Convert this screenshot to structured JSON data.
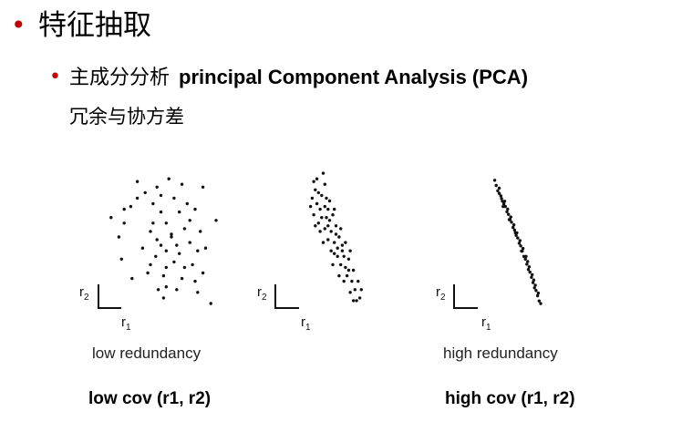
{
  "title": {
    "bullet": "•",
    "text": "特征抽取"
  },
  "subtitle": {
    "bullet": "•",
    "cn": "主成分分析",
    "en": "principal Component Analysis (PCA)"
  },
  "note": "冗余与协方差",
  "panels": [
    {
      "name": "low",
      "axis_y": "r",
      "axis_y_sub": "2",
      "axis_x": "r",
      "axis_x_sub": "1",
      "caption": "low redundancy",
      "bold_caption": "low cov (r1, r2)"
    },
    {
      "name": "mid",
      "axis_y": "r",
      "axis_y_sub": "2",
      "axis_x": "r",
      "axis_x_sub": "1"
    },
    {
      "name": "high",
      "axis_y": "r",
      "axis_y_sub": "2",
      "axis_x": "r",
      "axis_x_sub": "1",
      "caption": "high redundancy",
      "bold_caption": "high cov (r1, r2)"
    }
  ],
  "chart_data": [
    {
      "type": "scatter",
      "points": [
        [
          0.2,
          0.64
        ],
        [
          0.3,
          0.7
        ],
        [
          0.35,
          0.72
        ],
        [
          0.4,
          0.78
        ],
        [
          0.55,
          0.86
        ],
        [
          0.64,
          0.92
        ],
        [
          0.9,
          0.86
        ],
        [
          1.0,
          0.62
        ],
        [
          0.55,
          0.48
        ],
        [
          0.58,
          0.44
        ],
        [
          0.62,
          0.4
        ],
        [
          0.66,
          0.52
        ],
        [
          0.52,
          0.6
        ],
        [
          0.72,
          0.68
        ],
        [
          0.76,
          0.56
        ],
        [
          0.8,
          0.46
        ],
        [
          0.68,
          0.32
        ],
        [
          0.6,
          0.22
        ],
        [
          0.48,
          0.24
        ],
        [
          0.5,
          0.3
        ],
        [
          0.54,
          0.36
        ],
        [
          0.44,
          0.42
        ],
        [
          0.7,
          0.12
        ],
        [
          0.74,
          0.2
        ],
        [
          0.82,
          0.3
        ],
        [
          0.86,
          0.4
        ],
        [
          0.9,
          0.24
        ],
        [
          0.86,
          0.1
        ],
        [
          0.96,
          0.02
        ],
        [
          0.78,
          0.74
        ],
        [
          0.52,
          0.74
        ],
        [
          0.58,
          0.8
        ],
        [
          0.68,
          0.78
        ],
        [
          0.62,
          0.6
        ],
        [
          0.8,
          0.62
        ],
        [
          0.88,
          0.54
        ],
        [
          0.7,
          0.44
        ],
        [
          0.56,
          0.12
        ],
        [
          0.36,
          0.2
        ],
        [
          0.28,
          0.34
        ],
        [
          0.62,
          0.28
        ],
        [
          0.72,
          0.38
        ],
        [
          0.66,
          0.5
        ],
        [
          0.84,
          0.7
        ],
        [
          0.46,
          0.82
        ],
        [
          0.76,
          0.28
        ],
        [
          0.62,
          0.14
        ],
        [
          0.92,
          0.42
        ],
        [
          0.26,
          0.5
        ],
        [
          0.5,
          0.54
        ],
        [
          0.3,
          0.6
        ],
        [
          0.84,
          0.18
        ],
        [
          0.6,
          0.06
        ],
        [
          0.4,
          0.9
        ],
        [
          0.74,
          0.88
        ],
        [
          0.58,
          0.68
        ]
      ]
    },
    {
      "type": "scatter",
      "points": [
        [
          0.3,
          0.9
        ],
        [
          0.32,
          0.84
        ],
        [
          0.36,
          0.82
        ],
        [
          0.42,
          0.96
        ],
        [
          0.44,
          0.88
        ],
        [
          0.28,
          0.78
        ],
        [
          0.34,
          0.74
        ],
        [
          0.38,
          0.7
        ],
        [
          0.3,
          0.66
        ],
        [
          0.26,
          0.72
        ],
        [
          0.46,
          0.78
        ],
        [
          0.48,
          0.7
        ],
        [
          0.4,
          0.64
        ],
        [
          0.36,
          0.6
        ],
        [
          0.5,
          0.62
        ],
        [
          0.54,
          0.66
        ],
        [
          0.44,
          0.56
        ],
        [
          0.52,
          0.54
        ],
        [
          0.58,
          0.58
        ],
        [
          0.62,
          0.5
        ],
        [
          0.48,
          0.48
        ],
        [
          0.56,
          0.46
        ],
        [
          0.6,
          0.42
        ],
        [
          0.66,
          0.44
        ],
        [
          0.68,
          0.36
        ],
        [
          0.64,
          0.3
        ],
        [
          0.7,
          0.28
        ],
        [
          0.74,
          0.34
        ],
        [
          0.72,
          0.22
        ],
        [
          0.78,
          0.18
        ],
        [
          0.82,
          0.12
        ],
        [
          0.76,
          0.1
        ],
        [
          0.84,
          0.04
        ],
        [
          0.88,
          0.06
        ],
        [
          0.8,
          0.26
        ],
        [
          0.6,
          0.36
        ],
        [
          0.52,
          0.4
        ],
        [
          0.42,
          0.46
        ],
        [
          0.38,
          0.54
        ],
        [
          0.46,
          0.64
        ],
        [
          0.5,
          0.76
        ],
        [
          0.32,
          0.58
        ],
        [
          0.58,
          0.52
        ],
        [
          0.66,
          0.4
        ],
        [
          0.7,
          0.46
        ],
        [
          0.74,
          0.26
        ],
        [
          0.86,
          0.18
        ],
        [
          0.9,
          0.12
        ],
        [
          0.8,
          0.04
        ],
        [
          0.56,
          0.7
        ],
        [
          0.34,
          0.92
        ],
        [
          0.4,
          0.8
        ],
        [
          0.54,
          0.3
        ],
        [
          0.62,
          0.22
        ],
        [
          0.44,
          0.72
        ],
        [
          0.48,
          0.58
        ],
        [
          0.64,
          0.56
        ],
        [
          0.76,
          0.4
        ],
        [
          0.68,
          0.18
        ],
        [
          0.56,
          0.38
        ]
      ]
    },
    {
      "type": "scatter",
      "points": [
        [
          0.34,
          0.96
        ],
        [
          0.36,
          0.92
        ],
        [
          0.38,
          0.88
        ],
        [
          0.4,
          0.86
        ],
        [
          0.42,
          0.84
        ],
        [
          0.44,
          0.8
        ],
        [
          0.46,
          0.78
        ],
        [
          0.48,
          0.76
        ],
        [
          0.5,
          0.72
        ],
        [
          0.52,
          0.7
        ],
        [
          0.54,
          0.66
        ],
        [
          0.56,
          0.64
        ],
        [
          0.58,
          0.6
        ],
        [
          0.6,
          0.58
        ],
        [
          0.62,
          0.54
        ],
        [
          0.64,
          0.52
        ],
        [
          0.66,
          0.48
        ],
        [
          0.68,
          0.46
        ],
        [
          0.7,
          0.42
        ],
        [
          0.72,
          0.38
        ],
        [
          0.74,
          0.36
        ],
        [
          0.76,
          0.32
        ],
        [
          0.78,
          0.28
        ],
        [
          0.8,
          0.26
        ],
        [
          0.82,
          0.22
        ],
        [
          0.84,
          0.18
        ],
        [
          0.86,
          0.14
        ],
        [
          0.88,
          0.12
        ],
        [
          0.9,
          0.08
        ],
        [
          0.92,
          0.04
        ],
        [
          0.94,
          0.02
        ],
        [
          0.4,
          0.9
        ],
        [
          0.43,
          0.82
        ],
        [
          0.47,
          0.8
        ],
        [
          0.51,
          0.74
        ],
        [
          0.55,
          0.68
        ],
        [
          0.59,
          0.62
        ],
        [
          0.63,
          0.56
        ],
        [
          0.67,
          0.5
        ],
        [
          0.71,
          0.44
        ],
        [
          0.75,
          0.38
        ],
        [
          0.79,
          0.3
        ],
        [
          0.83,
          0.24
        ],
        [
          0.87,
          0.16
        ],
        [
          0.91,
          0.1
        ],
        [
          0.45,
          0.76
        ],
        [
          0.53,
          0.66
        ],
        [
          0.61,
          0.56
        ],
        [
          0.69,
          0.42
        ],
        [
          0.77,
          0.34
        ],
        [
          0.85,
          0.2
        ]
      ]
    }
  ]
}
